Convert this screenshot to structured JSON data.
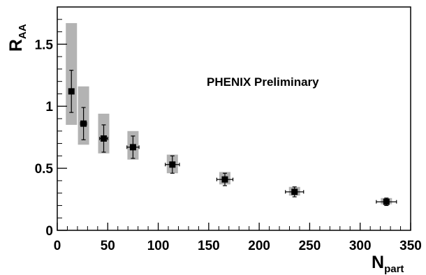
{
  "chart_data": {
    "type": "scatter",
    "title": "",
    "annotation": "PHENIX Preliminary",
    "xlabel": {
      "main": "N",
      "sub": "part"
    },
    "ylabel": {
      "main": "R",
      "sub": "AA"
    },
    "xlim": [
      0,
      350
    ],
    "ylim": [
      0,
      1.8
    ],
    "x_ticks": [
      0,
      50,
      100,
      150,
      200,
      250,
      300,
      350
    ],
    "x_tick_labels": [
      "0",
      "50",
      "100",
      "150",
      "200",
      "250",
      "300",
      "350"
    ],
    "y_ticks": [
      0,
      0.5,
      1,
      1.5
    ],
    "y_tick_labels": [
      "0",
      "0.5",
      "1",
      "1.5"
    ],
    "x_minor_step": 10,
    "y_minor_step": 0.1,
    "grid": false,
    "colors": {
      "marker": "#000000",
      "systematic_band": "#b3b3b3"
    },
    "series": [
      {
        "points": [
          {
            "x": 14,
            "y": 1.12,
            "xerr": 2,
            "yerr": 0.17,
            "sys_low": 0.85,
            "sys_high": 1.67
          },
          {
            "x": 26,
            "y": 0.86,
            "xerr": 3,
            "yerr": 0.13,
            "sys_low": 0.69,
            "sys_high": 1.16
          },
          {
            "x": 46,
            "y": 0.74,
            "xerr": 4,
            "yerr": 0.11,
            "sys_low": 0.62,
            "sys_high": 0.94
          },
          {
            "x": 75,
            "y": 0.67,
            "xerr": 6,
            "yerr": 0.09,
            "sys_low": 0.57,
            "sys_high": 0.8
          },
          {
            "x": 114,
            "y": 0.53,
            "xerr": 7,
            "yerr": 0.07,
            "sys_low": 0.46,
            "sys_high": 0.61
          },
          {
            "x": 166,
            "y": 0.41,
            "xerr": 8,
            "yerr": 0.05,
            "sys_low": 0.37,
            "sys_high": 0.47
          },
          {
            "x": 235,
            "y": 0.31,
            "xerr": 9,
            "yerr": 0.04,
            "sys_low": 0.28,
            "sys_high": 0.35
          },
          {
            "x": 326,
            "y": 0.23,
            "xerr": 10,
            "yerr": 0.03,
            "sys_low": 0.21,
            "sys_high": 0.26
          }
        ]
      }
    ]
  }
}
